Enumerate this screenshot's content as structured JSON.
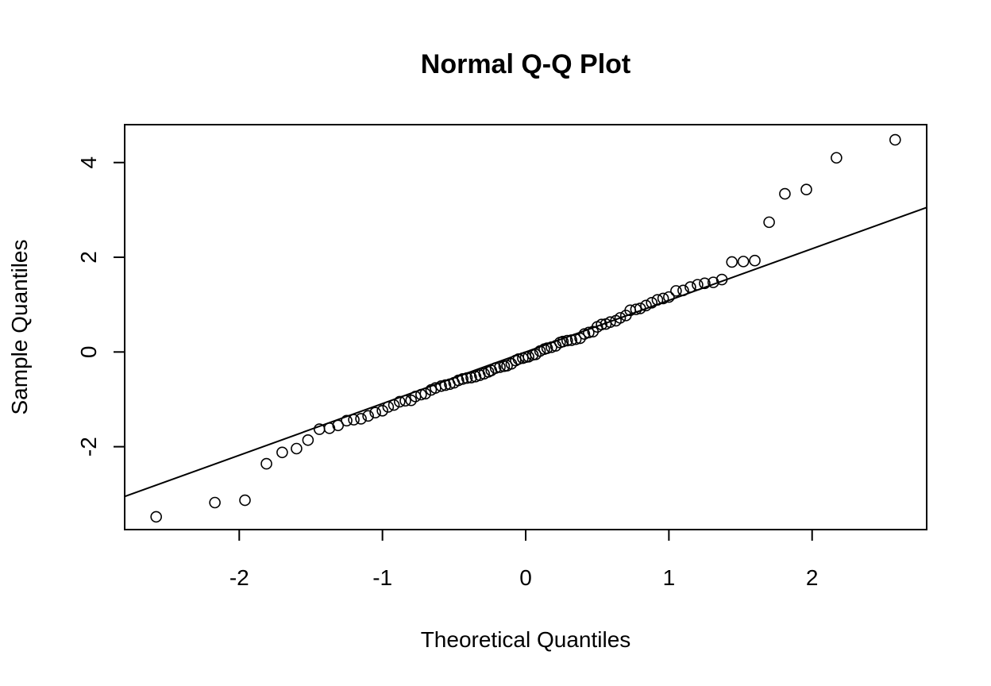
{
  "chart_data": {
    "type": "scatter",
    "title": "Normal Q-Q Plot",
    "xlabel": "Theoretical Quantiles",
    "ylabel": "Sample Quantiles",
    "xlim": [
      -2.8,
      2.8
    ],
    "ylim": [
      -3.75,
      4.8
    ],
    "xticks": [
      -2,
      -1,
      0,
      1,
      2
    ],
    "xtick_labels": [
      "-2",
      "-1",
      "0",
      "1",
      "2"
    ],
    "yticks": [
      -2,
      0,
      2,
      4
    ],
    "ytick_labels": [
      "-2",
      "0",
      "2",
      "4"
    ],
    "grid": false,
    "series": [
      {
        "kind": "points",
        "marker": "open-circle",
        "points": [
          [
            -2.58,
            -3.48
          ],
          [
            -2.17,
            -3.18
          ],
          [
            -1.96,
            -3.13
          ],
          [
            -1.81,
            -2.36
          ],
          [
            -1.7,
            -2.12
          ],
          [
            -1.6,
            -2.04
          ],
          [
            -1.52,
            -1.86
          ],
          [
            -1.44,
            -1.63
          ],
          [
            -1.37,
            -1.61
          ],
          [
            -1.31,
            -1.55
          ],
          [
            -1.25,
            -1.45
          ],
          [
            -1.2,
            -1.43
          ],
          [
            -1.15,
            -1.41
          ],
          [
            -1.1,
            -1.35
          ],
          [
            -1.05,
            -1.28
          ],
          [
            -1.0,
            -1.24
          ],
          [
            -0.96,
            -1.16
          ],
          [
            -0.92,
            -1.12
          ],
          [
            -0.88,
            -1.05
          ],
          [
            -0.84,
            -1.03
          ],
          [
            -0.8,
            -1.02
          ],
          [
            -0.77,
            -0.94
          ],
          [
            -0.73,
            -0.9
          ],
          [
            -0.7,
            -0.88
          ],
          [
            -0.66,
            -0.8
          ],
          [
            -0.63,
            -0.76
          ],
          [
            -0.59,
            -0.72
          ],
          [
            -0.56,
            -0.7
          ],
          [
            -0.53,
            -0.68
          ],
          [
            -0.5,
            -0.65
          ],
          [
            -0.47,
            -0.6
          ],
          [
            -0.44,
            -0.57
          ],
          [
            -0.41,
            -0.55
          ],
          [
            -0.38,
            -0.54
          ],
          [
            -0.35,
            -0.52
          ],
          [
            -0.32,
            -0.49
          ],
          [
            -0.29,
            -0.46
          ],
          [
            -0.26,
            -0.42
          ],
          [
            -0.24,
            -0.39
          ],
          [
            -0.21,
            -0.34
          ],
          [
            -0.18,
            -0.32
          ],
          [
            -0.15,
            -0.3
          ],
          [
            -0.13,
            -0.29
          ],
          [
            -0.1,
            -0.25
          ],
          [
            -0.07,
            -0.18
          ],
          [
            -0.05,
            -0.15
          ],
          [
            -0.02,
            -0.13
          ],
          [
            0.0,
            -0.11
          ],
          [
            0.02,
            -0.1
          ],
          [
            0.05,
            -0.06
          ],
          [
            0.07,
            -0.05
          ],
          [
            0.1,
            0.02
          ],
          [
            0.13,
            0.06
          ],
          [
            0.15,
            0.08
          ],
          [
            0.18,
            0.1
          ],
          [
            0.21,
            0.13
          ],
          [
            0.24,
            0.2
          ],
          [
            0.26,
            0.22
          ],
          [
            0.29,
            0.24
          ],
          [
            0.32,
            0.25
          ],
          [
            0.35,
            0.27
          ],
          [
            0.38,
            0.29
          ],
          [
            0.41,
            0.38
          ],
          [
            0.44,
            0.41
          ],
          [
            0.47,
            0.43
          ],
          [
            0.5,
            0.53
          ],
          [
            0.53,
            0.58
          ],
          [
            0.56,
            0.59
          ],
          [
            0.59,
            0.63
          ],
          [
            0.63,
            0.66
          ],
          [
            0.66,
            0.72
          ],
          [
            0.7,
            0.77
          ],
          [
            0.73,
            0.88
          ],
          [
            0.77,
            0.9
          ],
          [
            0.8,
            0.92
          ],
          [
            0.84,
            0.98
          ],
          [
            0.88,
            1.04
          ],
          [
            0.92,
            1.1
          ],
          [
            0.96,
            1.13
          ],
          [
            1.0,
            1.16
          ],
          [
            1.05,
            1.29
          ],
          [
            1.1,
            1.3
          ],
          [
            1.15,
            1.37
          ],
          [
            1.2,
            1.42
          ],
          [
            1.25,
            1.45
          ],
          [
            1.31,
            1.47
          ],
          [
            1.37,
            1.53
          ],
          [
            1.44,
            1.9
          ],
          [
            1.52,
            1.91
          ],
          [
            1.6,
            1.93
          ],
          [
            1.7,
            2.74
          ],
          [
            1.81,
            3.34
          ],
          [
            1.96,
            3.43
          ],
          [
            2.17,
            4.1
          ],
          [
            2.58,
            4.48
          ]
        ]
      },
      {
        "kind": "reference-line",
        "intercept": 0.0,
        "slope": 1.09
      }
    ]
  }
}
